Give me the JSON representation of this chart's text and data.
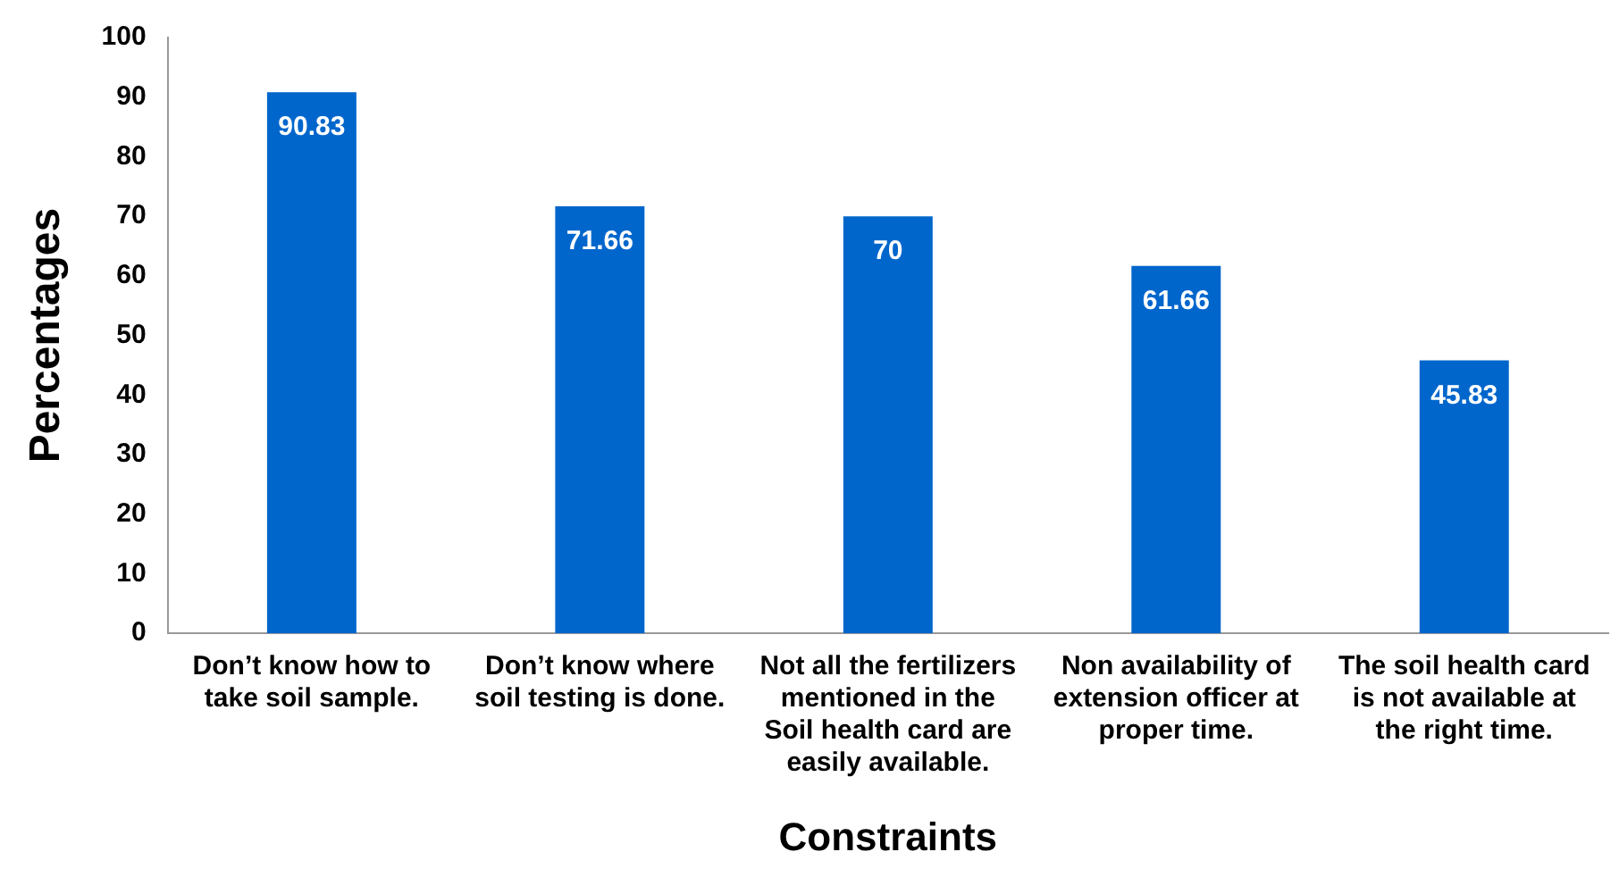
{
  "chart_data": {
    "type": "bar",
    "xlabel": "Constraints",
    "ylabel": "Percentages",
    "categories": [
      "Don’t know how to take soil sample.",
      "Don’t know where soil testing is done.",
      "Not all the fertilizers mentioned in the Soil health card are easily available.",
      "Non availability of extension officer at proper time.",
      "The soil health card is not available at the right time."
    ],
    "values": [
      90.83,
      71.66,
      70,
      61.66,
      45.83
    ],
    "color": "#0066cc",
    "ylim": [
      0,
      100
    ],
    "yticks": [
      0,
      10,
      20,
      30,
      40,
      50,
      60,
      70,
      80,
      90,
      100
    ],
    "grid": false,
    "legend": false,
    "data_labels": true
  }
}
